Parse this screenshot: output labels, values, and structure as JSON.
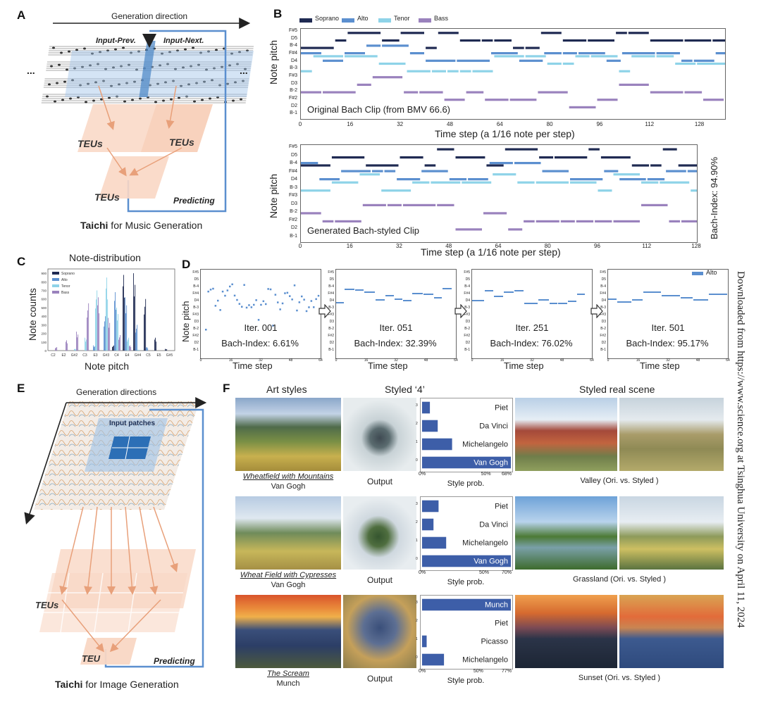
{
  "panels": {
    "A": "A",
    "B": "B",
    "C": "C",
    "D": "D",
    "E": "E",
    "F": "F"
  },
  "panelA": {
    "direction": "Generation direction",
    "input_prev": "Input-Prev.",
    "input_next": "Input-Next.",
    "ellipsis": "...",
    "teu": "TEUs",
    "predicting": "Predicting",
    "caption_bold": "Taichi",
    "caption_rest": " for Music Generation"
  },
  "panelB": {
    "legend": [
      {
        "name": "Soprano",
        "color": "#1f2a52"
      },
      {
        "name": "Alto",
        "color": "#5b8fcf"
      },
      {
        "name": "Tenor",
        "color": "#8ed3e8"
      },
      {
        "name": "Bass",
        "color": "#9a82bd"
      }
    ],
    "ylabel": "Note pitch",
    "xlabel": "Time step (a 1/16 note per step)",
    "yticks": [
      "F#5",
      "D5",
      "B-4",
      "F#4",
      "D4",
      "B-3",
      "F#3",
      "D3",
      "B-2",
      "F#2",
      "D2",
      "B-1"
    ],
    "top": {
      "title": "Original Bach Clip (from BMV 66.6)",
      "xticks": [
        "0",
        "16",
        "32",
        "48",
        "64",
        "80",
        "96",
        "112",
        "128"
      ]
    },
    "bottom": {
      "title": "Generated Bach-styled Clip",
      "xticks": [
        "0",
        "16",
        "32",
        "48",
        "64",
        "80",
        "96",
        "112",
        "128"
      ]
    },
    "bach_index": "Bach-Index: 94.90%"
  },
  "panelC": {
    "title": "Note-distribution",
    "ylabel": "Note counts",
    "xlabel": "Note pitch",
    "yticks": [
      "0",
      "100",
      "200",
      "300",
      "400",
      "500",
      "600",
      "700",
      "800",
      "900"
    ],
    "xticks": [
      "C2",
      "E2",
      "G#2",
      "C3",
      "E3",
      "G#3",
      "C4",
      "E4",
      "G#4",
      "C5",
      "E5",
      "G#5"
    ],
    "legend": [
      "Soprano",
      "Alto",
      "Tenor",
      "Bass"
    ]
  },
  "panelD": {
    "ylabel": "Note pitch",
    "xlabel": "Time step",
    "legend": "Alto",
    "yticks": [
      "F#5",
      "D5",
      "B-4",
      "F#4",
      "D4",
      "B-3",
      "F#3",
      "D3",
      "B-2",
      "F#2",
      "D2",
      "B-1"
    ],
    "xticks": [
      "0",
      "16",
      "32",
      "48",
      "64"
    ],
    "iters": [
      {
        "iter": "Iter. 001",
        "bach": "Bach-Index: 6.61%"
      },
      {
        "iter": "Iter. 051",
        "bach": "Bach-Index: 32.39%"
      },
      {
        "iter": "Iter. 251",
        "bach": "Bach-Index: 76.02%"
      },
      {
        "iter": "Iter. 501",
        "bach": "Bach-Index: 95.17%"
      }
    ]
  },
  "panelE": {
    "direction": "Generation directions",
    "input_patches": "Input patches",
    "teus": "TEUs",
    "teu": "TEU",
    "predicting": "Predicting",
    "caption_bold": "Taichi",
    "caption_rest": " for Image Generation"
  },
  "panelF": {
    "headers": {
      "art": "Art styles",
      "styled4": "Styled ‘4’",
      "real": "Styled real scene"
    },
    "output": "Output",
    "style_prob": "Style prob.",
    "rows": [
      {
        "title": "Wheatfield with Mountains",
        "artist": "Van Gogh",
        "bars": [
          {
            "label": "Piet",
            "value": 0.06
          },
          {
            "label": "Da Vinci",
            "value": 0.12
          },
          {
            "label": "Michelangelo",
            "value": 0.23
          },
          {
            "label": "Van Gogh",
            "value": 0.68
          }
        ],
        "xticks": [
          "0%",
          "50%",
          "68%"
        ],
        "scene": "Valley (Ori. vs. Styled )"
      },
      {
        "title": "Wheat Field with Cypresses",
        "artist": "Van Gogh",
        "bars": [
          {
            "label": "Piet",
            "value": 0.13
          },
          {
            "label": "Da Vinci",
            "value": 0.09
          },
          {
            "label": "Michelangelo",
            "value": 0.19
          },
          {
            "label": "Van Gogh",
            "value": 0.7
          }
        ],
        "xticks": [
          "0%",
          "50%",
          "70%"
        ],
        "scene": "Grassland (Ori. vs. Styled )"
      },
      {
        "title": "The Scream",
        "artist": "Munch",
        "bars": [
          {
            "label": "Munch",
            "value": 0.77
          },
          {
            "label": "Piet",
            "value": 0.0
          },
          {
            "label": "Picasso",
            "value": 0.04
          },
          {
            "label": "Michelangelo",
            "value": 0.19
          }
        ],
        "xticks": [
          "0%",
          "50%",
          "77%"
        ],
        "scene": "Sunset (Ori. vs. Styled )"
      }
    ]
  },
  "watermark": "Downloaded from https://www.science.org at Tsinghua University on April 11, 2024",
  "chart_data": [
    {
      "type": "bar",
      "title": "Note-distribution",
      "xlabel": "Note pitch",
      "ylabel": "Note counts",
      "ylim": [
        0,
        950
      ],
      "categories": [
        "C2",
        "E2",
        "G#2",
        "C3",
        "E3",
        "G#3",
        "C4",
        "E4",
        "G#4",
        "C5",
        "E5",
        "G#5"
      ],
      "series": [
        {
          "name": "Soprano",
          "color": "#1f2a52",
          "values": [
            0,
            0,
            0,
            0,
            0,
            0,
            60,
            880,
            900,
            600,
            150,
            20
          ]
        },
        {
          "name": "Alto",
          "color": "#5b8fcf",
          "values": [
            0,
            0,
            0,
            0,
            60,
            400,
            680,
            620,
            300,
            40,
            0,
            0
          ]
        },
        {
          "name": "Tenor",
          "color": "#8ed3e8",
          "values": [
            0,
            0,
            20,
            150,
            700,
            850,
            500,
            150,
            10,
            0,
            0,
            0
          ]
        },
        {
          "name": "Bass",
          "color": "#9a82bd",
          "values": [
            40,
            120,
            220,
            550,
            620,
            380,
            180,
            60,
            0,
            0,
            0,
            0
          ]
        }
      ]
    },
    {
      "type": "bar",
      "title": "Style prob. (Wheatfield with Mountains)",
      "categories": [
        "Piet",
        "Da Vinci",
        "Michelangelo",
        "Van Gogh"
      ],
      "values": [
        0.06,
        0.12,
        0.23,
        0.68
      ],
      "xlim": [
        0,
        0.68
      ]
    },
    {
      "type": "bar",
      "title": "Style prob. (Wheat Field with Cypresses)",
      "categories": [
        "Piet",
        "Da Vinci",
        "Michelangelo",
        "Van Gogh"
      ],
      "values": [
        0.13,
        0.09,
        0.19,
        0.7
      ],
      "xlim": [
        0,
        0.7
      ]
    },
    {
      "type": "bar",
      "title": "Style prob. (The Scream)",
      "categories": [
        "Munch",
        "Piet",
        "Picasso",
        "Michelangelo"
      ],
      "values": [
        0.77,
        0.0,
        0.04,
        0.19
      ],
      "xlim": [
        0,
        0.77
      ]
    }
  ]
}
